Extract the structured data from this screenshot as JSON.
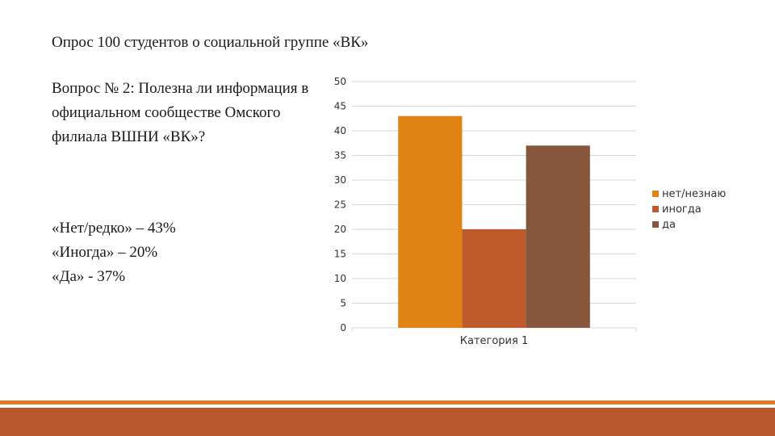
{
  "slide": {
    "title": "Опрос 100 студентов о социальной группе «ВК»",
    "question": "Вопрос № 2: Полезна ли информация в официальном сообществе Омского филиала ВШНИ  «ВК»?",
    "answers": [
      "«Нет/редко» – 43%",
      "«Иногда» – 20%",
      "«Да» - 37%"
    ]
  },
  "colors": {
    "accent_line": "#e07b24",
    "footer": "#b9572c"
  },
  "chart_data": {
    "type": "bar",
    "categories": [
      "Категория 1"
    ],
    "series": [
      {
        "name": "нет/незнаю",
        "values": [
          43
        ],
        "color": "#e08214"
      },
      {
        "name": "иногда",
        "values": [
          20
        ],
        "color": "#bf5a2c"
      },
      {
        "name": "да",
        "values": [
          37
        ],
        "color": "#87573d"
      }
    ],
    "ylim": [
      0,
      50
    ],
    "yticks": [
      0,
      5,
      10,
      15,
      20,
      25,
      30,
      35,
      40,
      45,
      50
    ],
    "grid": true,
    "legend": "right"
  }
}
